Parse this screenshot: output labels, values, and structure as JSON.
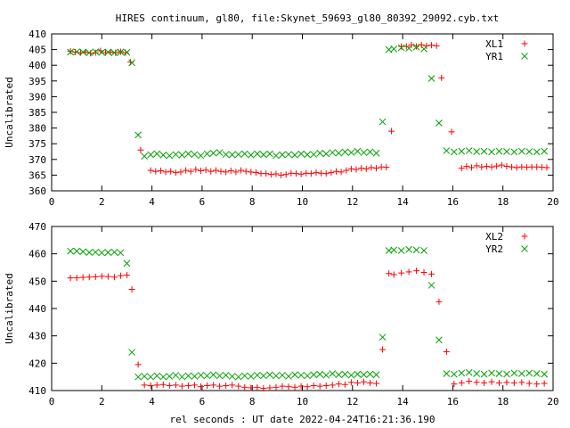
{
  "title": "HIRES continuum, gl80, file:Skynet_59693_gl80_80392_29092.cyb.txt",
  "colors": {
    "red": "#ff0000",
    "green": "#00a000"
  },
  "chart_data": [
    {
      "type": "scatter",
      "ylabel": "Uncalibrated",
      "xlabel": "",
      "xlim": [
        0,
        20
      ],
      "ylim": [
        360,
        410
      ],
      "xticks": [
        0,
        2,
        4,
        6,
        8,
        10,
        12,
        14,
        16,
        18,
        20
      ],
      "yticks": [
        360,
        365,
        370,
        375,
        380,
        385,
        390,
        395,
        400,
        405,
        410
      ],
      "legend_position": "top-right",
      "series": [
        {
          "name": "XL1",
          "marker": "plus",
          "color": "#ff0000",
          "x": [
            0.75,
            0.95,
            1.15,
            1.35,
            1.55,
            1.75,
            1.95,
            2.15,
            2.35,
            2.55,
            2.75,
            2.95,
            3.15,
            3.35,
            3.55,
            3.75,
            3.95,
            4.15,
            4.35,
            4.55,
            4.75,
            4.95,
            5.15,
            5.35,
            5.55,
            5.75,
            5.95,
            6.15,
            6.35,
            6.55,
            6.75,
            6.95,
            7.15,
            7.35,
            7.55,
            7.75,
            7.95,
            8.15,
            8.35,
            8.55,
            8.75,
            8.95,
            9.15,
            9.35,
            9.55,
            9.75,
            9.95,
            10.15,
            10.35,
            10.55,
            10.75,
            10.95,
            11.15,
            11.35,
            11.55,
            11.75,
            11.95,
            12.15,
            12.35,
            12.55,
            12.75,
            12.95,
            13.15,
            13.35,
            13.55,
            13.75,
            13.95,
            14.15,
            14.35,
            14.55,
            14.75,
            14.95,
            15.15,
            15.35,
            15.55,
            15.75,
            15.95,
            16.15,
            16.35,
            16.55,
            16.75,
            16.95,
            17.15,
            17.35,
            17.55,
            17.75,
            17.95,
            18.15,
            18.35,
            18.55,
            18.75,
            18.95,
            19.15,
            19.35,
            19.55,
            19.75
          ],
          "y": [
            404.5,
            404.2,
            404.0,
            404.2,
            403.8,
            404.0,
            404.6,
            404.0,
            404.2,
            404.0,
            404.3,
            404.0,
            401.0,
            null,
            373.0,
            null,
            366.5,
            366.2,
            366.4,
            366.0,
            366.2,
            365.8,
            366.0,
            366.5,
            366.2,
            366.8,
            366.4,
            366.6,
            366.2,
            366.5,
            366.2,
            366.0,
            366.4,
            366.0,
            366.5,
            366.2,
            366.0,
            365.8,
            365.5,
            365.5,
            365.2,
            365.4,
            365.0,
            365.2,
            365.6,
            365.5,
            365.3,
            365.6,
            365.5,
            365.8,
            365.6,
            365.5,
            365.8,
            366.2,
            366.0,
            366.5,
            367.0,
            366.8,
            367.2,
            367.0,
            367.4,
            367.2,
            367.6,
            367.5,
            379.0,
            null,
            406.0,
            406.0,
            406.5,
            406.0,
            406.5,
            406.2,
            406.4,
            406.2,
            396.0,
            null,
            378.8,
            null,
            367.2,
            367.8,
            367.4,
            368.0,
            367.6,
            367.8,
            367.6,
            367.9,
            368.2,
            367.8,
            367.6,
            367.4,
            367.6,
            367.5,
            367.6,
            367.6,
            367.5,
            367.4
          ],
          "note": ""
        },
        {
          "name": "YR1",
          "marker": "cross",
          "color": "#00a000",
          "x": [
            0.75,
            1.0,
            1.25,
            1.5,
            1.75,
            2.0,
            2.25,
            2.5,
            2.75,
            3.0,
            3.2,
            3.45,
            3.7,
            3.95,
            4.2,
            4.45,
            4.7,
            4.95,
            5.2,
            5.45,
            5.7,
            5.95,
            6.2,
            6.45,
            6.7,
            6.95,
            7.2,
            7.45,
            7.7,
            7.95,
            8.2,
            8.45,
            8.7,
            8.95,
            9.2,
            9.45,
            9.7,
            9.95,
            10.2,
            10.45,
            10.7,
            10.95,
            11.2,
            11.45,
            11.7,
            11.95,
            12.2,
            12.45,
            12.7,
            12.95,
            13.2,
            13.45,
            13.65,
            13.95,
            14.25,
            14.55,
            14.85,
            15.15,
            15.45,
            15.75,
            16.05,
            16.35,
            16.65,
            16.95,
            17.25,
            17.55,
            17.85,
            18.15,
            18.45,
            18.75,
            19.05,
            19.35,
            19.65
          ],
          "y": [
            404.2,
            404.3,
            404.2,
            404.0,
            404.3,
            404.1,
            404.2,
            404.0,
            404.2,
            404.1,
            400.8,
            377.8,
            371.0,
            371.5,
            371.8,
            371.4,
            371.2,
            371.6,
            371.4,
            371.8,
            371.6,
            371.2,
            371.8,
            372.0,
            372.2,
            371.6,
            371.5,
            371.6,
            371.8,
            371.4,
            371.8,
            371.5,
            371.8,
            371.2,
            371.5,
            371.6,
            371.4,
            371.8,
            371.5,
            371.6,
            372.0,
            371.8,
            372.2,
            372.0,
            372.4,
            372.2,
            372.6,
            372.2,
            372.4,
            372.0,
            382.0,
            405.0,
            405.2,
            405.6,
            405.4,
            405.8,
            405.2,
            395.8,
            381.6,
            372.8,
            372.4,
            372.6,
            372.8,
            372.5,
            372.6,
            372.4,
            372.6,
            372.5,
            372.4,
            372.6,
            372.5,
            372.4,
            372.6
          ],
          "note": ""
        }
      ]
    },
    {
      "type": "scatter",
      "ylabel": "Uncalibrated",
      "xlabel": "rel seconds : UT date 2022-04-24T16:21:36.190",
      "xlim": [
        0,
        20
      ],
      "ylim": [
        410,
        470
      ],
      "xticks": [
        0,
        2,
        4,
        6,
        8,
        10,
        12,
        14,
        16,
        18,
        20
      ],
      "yticks": [
        410,
        420,
        430,
        440,
        450,
        460,
        470
      ],
      "legend_position": "top-right",
      "series": [
        {
          "name": "XL2",
          "marker": "plus",
          "color": "#ff0000",
          "x": [
            0.75,
            1.0,
            1.25,
            1.5,
            1.75,
            2.0,
            2.25,
            2.5,
            2.75,
            3.0,
            3.2,
            3.45,
            3.7,
            3.95,
            4.2,
            4.45,
            4.7,
            4.95,
            5.2,
            5.45,
            5.7,
            5.95,
            6.2,
            6.45,
            6.7,
            6.95,
            7.2,
            7.45,
            7.7,
            7.95,
            8.2,
            8.45,
            8.7,
            8.95,
            9.2,
            9.45,
            9.7,
            9.95,
            10.2,
            10.45,
            10.7,
            10.95,
            11.2,
            11.45,
            11.7,
            11.95,
            12.2,
            12.45,
            12.7,
            12.95,
            13.2,
            13.45,
            13.65,
            13.95,
            14.25,
            14.55,
            14.85,
            15.15,
            15.45,
            15.75,
            16.05,
            16.35,
            16.65,
            16.95,
            17.25,
            17.55,
            17.85,
            18.15,
            18.45,
            18.75,
            19.05,
            19.35,
            19.65
          ],
          "y": [
            451.2,
            451.2,
            451.4,
            451.5,
            451.6,
            451.8,
            451.7,
            451.5,
            452.0,
            452.2,
            447.0,
            419.5,
            412.0,
            411.8,
            412.0,
            412.2,
            411.8,
            412.0,
            411.6,
            411.8,
            412.0,
            411.5,
            411.8,
            412.0,
            411.6,
            411.8,
            412.0,
            411.6,
            411.2,
            411.0,
            411.2,
            410.8,
            411.0,
            411.2,
            411.6,
            411.4,
            411.2,
            411.6,
            411.4,
            411.8,
            411.6,
            411.8,
            412.0,
            412.4,
            412.2,
            413.0,
            412.8,
            413.2,
            412.8,
            412.6,
            425.0,
            452.8,
            452.4,
            453.0,
            453.4,
            453.8,
            453.2,
            452.6,
            442.5,
            424.2,
            412.4,
            412.8,
            413.4,
            413.0,
            412.8,
            413.2,
            412.8,
            413.0,
            412.8,
            413.0,
            412.6,
            412.4,
            412.6
          ],
          "note": ""
        },
        {
          "name": "YR2",
          "marker": "cross",
          "color": "#00a000",
          "x": [
            0.75,
            1.0,
            1.25,
            1.5,
            1.75,
            2.0,
            2.25,
            2.5,
            2.75,
            3.0,
            3.2,
            3.45,
            3.7,
            3.95,
            4.2,
            4.45,
            4.7,
            4.95,
            5.2,
            5.45,
            5.7,
            5.95,
            6.2,
            6.45,
            6.7,
            6.95,
            7.2,
            7.45,
            7.7,
            7.95,
            8.2,
            8.45,
            8.7,
            8.95,
            9.2,
            9.45,
            9.7,
            9.95,
            10.2,
            10.45,
            10.7,
            10.95,
            11.2,
            11.45,
            11.7,
            11.95,
            12.2,
            12.45,
            12.7,
            12.95,
            13.2,
            13.45,
            13.65,
            13.95,
            14.25,
            14.55,
            14.85,
            15.15,
            15.45,
            15.75,
            16.05,
            16.35,
            16.65,
            16.95,
            17.25,
            17.55,
            17.85,
            18.15,
            18.45,
            18.75,
            19.05,
            19.35,
            19.65
          ],
          "y": [
            461.0,
            461.0,
            460.8,
            460.5,
            460.6,
            460.4,
            460.5,
            460.6,
            460.4,
            456.5,
            424.0,
            415.0,
            415.2,
            415.0,
            415.4,
            415.0,
            415.2,
            415.6,
            415.0,
            415.4,
            415.2,
            415.6,
            415.4,
            415.8,
            415.4,
            415.6,
            415.2,
            415.0,
            415.4,
            415.2,
            415.6,
            415.4,
            415.8,
            415.4,
            415.6,
            415.2,
            415.8,
            415.6,
            415.4,
            415.8,
            416.0,
            415.6,
            416.2,
            415.8,
            416.0,
            415.6,
            416.0,
            415.8,
            416.0,
            415.8,
            429.5,
            461.2,
            461.4,
            461.2,
            461.6,
            461.4,
            461.2,
            448.5,
            428.5,
            416.2,
            416.0,
            416.4,
            416.6,
            416.2,
            416.0,
            416.4,
            416.2,
            416.0,
            416.4,
            416.2,
            416.4,
            416.2,
            416.0
          ],
          "note": ""
        }
      ]
    }
  ]
}
